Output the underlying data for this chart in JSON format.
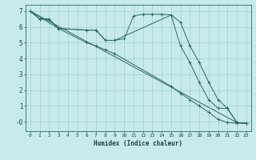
{
  "xlabel": "Humidex (Indice chaleur)",
  "bg_color": "#c8eaea",
  "line_color": "#2a6b60",
  "grid_color": "#a0d0d0",
  "xlim": [
    -0.5,
    23.5
  ],
  "ylim": [
    -0.6,
    7.4
  ],
  "xticks": [
    0,
    1,
    2,
    3,
    4,
    5,
    6,
    7,
    8,
    9,
    10,
    11,
    12,
    13,
    14,
    15,
    16,
    17,
    18,
    19,
    20,
    21,
    22,
    23
  ],
  "yticks": [
    0,
    1,
    2,
    3,
    4,
    5,
    6,
    7
  ],
  "ytick_labels": [
    "-0",
    "1",
    "2",
    "3",
    "4",
    "5",
    "6",
    "7"
  ],
  "lines": [
    {
      "x": [
        0,
        1,
        2,
        3,
        6,
        7,
        8,
        9,
        10,
        11,
        12,
        13,
        14,
        15,
        16,
        17,
        18,
        19,
        20,
        21,
        22,
        23
      ],
      "y": [
        7.0,
        6.5,
        6.5,
        5.9,
        5.8,
        5.8,
        5.15,
        5.15,
        5.25,
        6.7,
        6.8,
        6.8,
        6.8,
        6.75,
        6.3,
        4.8,
        3.75,
        2.5,
        1.4,
        0.85,
        -0.05,
        -0.1
      ]
    },
    {
      "x": [
        0,
        3,
        6,
        7,
        8,
        9,
        15,
        16,
        17,
        18,
        19,
        20,
        21,
        22,
        23
      ],
      "y": [
        7.0,
        5.9,
        5.0,
        4.8,
        4.55,
        4.3,
        2.25,
        1.8,
        1.4,
        1.0,
        0.6,
        0.15,
        -0.05,
        -0.1,
        -0.1
      ]
    },
    {
      "x": [
        0,
        1,
        2,
        3,
        6,
        7,
        8,
        9,
        15,
        16,
        17,
        18,
        19,
        20,
        21,
        22,
        23
      ],
      "y": [
        7.0,
        6.5,
        6.5,
        5.9,
        5.8,
        5.8,
        5.15,
        5.15,
        6.75,
        4.8,
        3.75,
        2.5,
        1.4,
        0.85,
        0.85,
        -0.05,
        -0.1
      ]
    },
    {
      "x": [
        0,
        22,
        23
      ],
      "y": [
        7.0,
        -0.05,
        -0.1
      ]
    }
  ]
}
